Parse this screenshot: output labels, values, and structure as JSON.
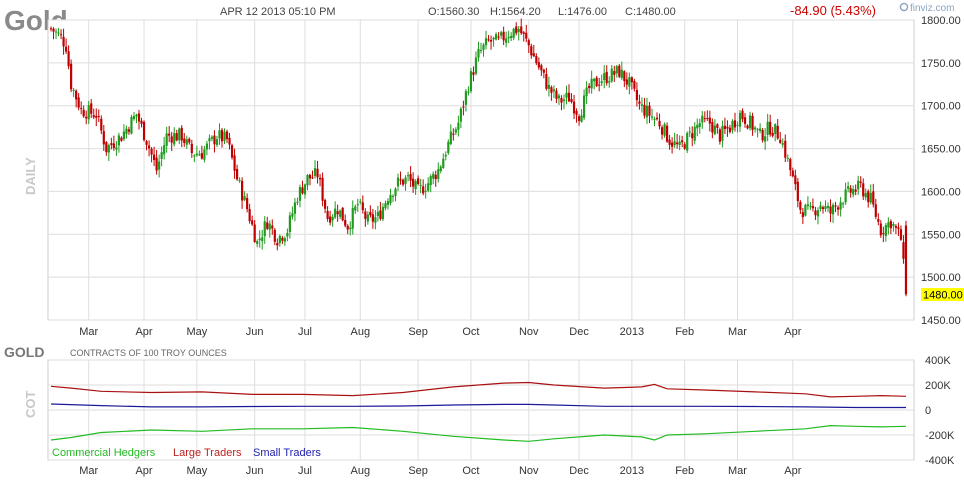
{
  "header": {
    "symbol": "Gold",
    "datetime": "APR 12 2013 05:10 PM",
    "open": "O:1560.30",
    "high": "H:1564.20",
    "low": "L:1476.00",
    "close": "C:1480.00",
    "change": "-84.90 (5.43%)",
    "brand": "finviz.com"
  },
  "colors": {
    "up": "#1f9b1f",
    "down": "#c00000",
    "grid": "#dedede",
    "commercial": "#22bb22",
    "large": "#aa1111",
    "small": "#1a1a99",
    "last_price_bg": "#ffff00"
  },
  "chart_data": [
    {
      "type": "candlestick",
      "ylabel": "DAILY",
      "ylim": [
        1450,
        1800
      ],
      "y_ticks": [
        1450,
        1500,
        1550,
        1600,
        1650,
        1700,
        1750,
        1800
      ],
      "y_tick_labels": [
        "1450.00",
        "1500.00",
        "1550.00",
        "1600.00",
        "1650.00",
        "1700.00",
        "1750.00",
        "1800.00"
      ],
      "x_labels": [
        "Mar",
        "Apr",
        "May",
        "Jun",
        "Jul",
        "Aug",
        "Sep",
        "Oct",
        "Nov",
        "Dec",
        "2013",
        "Feb",
        "Mar",
        "Apr"
      ],
      "last_price_label": "1480.00",
      "last_price": 1480.0,
      "grid": true,
      "close_path": [
        [
          0,
          1790
        ],
        [
          4,
          1780
        ],
        [
          6,
          1770
        ],
        [
          8,
          1725
        ],
        [
          12,
          1695
        ],
        [
          18,
          1690
        ],
        [
          22,
          1650
        ],
        [
          28,
          1665
        ],
        [
          34,
          1690
        ],
        [
          38,
          1660
        ],
        [
          42,
          1625
        ],
        [
          46,
          1665
        ],
        [
          52,
          1665
        ],
        [
          56,
          1645
        ],
        [
          60,
          1645
        ],
        [
          66,
          1665
        ],
        [
          70,
          1660
        ],
        [
          74,
          1615
        ],
        [
          78,
          1580
        ],
        [
          82,
          1540
        ],
        [
          86,
          1565
        ],
        [
          90,
          1545
        ],
        [
          94,
          1555
        ],
        [
          98,
          1595
        ],
        [
          102,
          1615
        ],
        [
          106,
          1620
        ],
        [
          110,
          1570
        ],
        [
          114,
          1580
        ],
        [
          118,
          1560
        ],
        [
          122,
          1585
        ],
        [
          126,
          1565
        ],
        [
          130,
          1570
        ],
        [
          134,
          1595
        ],
        [
          138,
          1610
        ],
        [
          142,
          1615
        ],
        [
          146,
          1600
        ],
        [
          150,
          1610
        ],
        [
          154,
          1625
        ],
        [
          158,
          1655
        ],
        [
          162,
          1680
        ],
        [
          166,
          1725
        ],
        [
          170,
          1760
        ],
        [
          174,
          1775
        ],
        [
          178,
          1775
        ],
        [
          182,
          1785
        ],
        [
          186,
          1790
        ],
        [
          190,
          1770
        ],
        [
          194,
          1745
        ],
        [
          198,
          1720
        ],
        [
          202,
          1705
        ],
        [
          206,
          1710
        ],
        [
          210,
          1690
        ],
        [
          214,
          1720
        ],
        [
          218,
          1730
        ],
        [
          222,
          1735
        ],
        [
          226,
          1740
        ],
        [
          230,
          1725
        ],
        [
          234,
          1700
        ],
        [
          238,
          1690
        ],
        [
          242,
          1680
        ],
        [
          246,
          1660
        ],
        [
          250,
          1650
        ],
        [
          254,
          1665
        ],
        [
          258,
          1680
        ],
        [
          262,
          1680
        ],
        [
          266,
          1665
        ],
        [
          270,
          1675
        ],
        [
          274,
          1690
        ],
        [
          278,
          1680
        ],
        [
          282,
          1665
        ],
        [
          286,
          1675
        ],
        [
          290,
          1665
        ],
        [
          294,
          1625
        ],
        [
          298,
          1580
        ],
        [
          302,
          1575
        ],
        [
          306,
          1585
        ],
        [
          310,
          1575
        ],
        [
          314,
          1590
        ],
        [
          318,
          1600
        ],
        [
          322,
          1605
        ],
        [
          326,
          1590
        ],
        [
          330,
          1555
        ],
        [
          334,
          1565
        ],
        [
          338,
          1545
        ],
        [
          340,
          1480
        ]
      ]
    },
    {
      "type": "line",
      "title": "GOLD",
      "subtitle": "CONTRACTS OF 100 TROY OUNCES",
      "ylabel": "COT",
      "ylim": [
        -400000,
        400000
      ],
      "y_tick_labels": [
        "400K",
        "200K",
        "0",
        "-200K",
        "-400K"
      ],
      "y_ticks": [
        400000,
        200000,
        0,
        -200000,
        -400000
      ],
      "x_labels": [
        "Mar",
        "Apr",
        "May",
        "Jun",
        "Jul",
        "Aug",
        "Sep",
        "Oct",
        "Nov",
        "Dec",
        "2013",
        "Feb",
        "Mar",
        "Apr"
      ],
      "series": [
        {
          "name": "Commercial Hedgers",
          "values": [
            [
              0,
              -240000
            ],
            [
              8,
              -220000
            ],
            [
              20,
              -180000
            ],
            [
              40,
              -160000
            ],
            [
              60,
              -170000
            ],
            [
              80,
              -150000
            ],
            [
              100,
              -150000
            ],
            [
              120,
              -140000
            ],
            [
              140,
              -170000
            ],
            [
              160,
              -210000
            ],
            [
              180,
              -240000
            ],
            [
              190,
              -250000
            ],
            [
              200,
              -230000
            ],
            [
              220,
              -200000
            ],
            [
              235,
              -215000
            ],
            [
              240,
              -240000
            ],
            [
              245,
              -200000
            ],
            [
              260,
              -190000
            ],
            [
              280,
              -170000
            ],
            [
              300,
              -150000
            ],
            [
              310,
              -125000
            ],
            [
              320,
              -130000
            ],
            [
              330,
              -135000
            ],
            [
              340,
              -130000
            ]
          ]
        },
        {
          "name": "Large Traders",
          "values": [
            [
              0,
              190000
            ],
            [
              8,
              175000
            ],
            [
              20,
              150000
            ],
            [
              40,
              140000
            ],
            [
              60,
              145000
            ],
            [
              80,
              125000
            ],
            [
              100,
              125000
            ],
            [
              120,
              115000
            ],
            [
              140,
              140000
            ],
            [
              160,
              185000
            ],
            [
              180,
              215000
            ],
            [
              190,
              220000
            ],
            [
              200,
              200000
            ],
            [
              220,
              175000
            ],
            [
              235,
              185000
            ],
            [
              240,
              205000
            ],
            [
              245,
              170000
            ],
            [
              260,
              160000
            ],
            [
              280,
              145000
            ],
            [
              300,
              130000
            ],
            [
              310,
              105000
            ],
            [
              320,
              110000
            ],
            [
              330,
              115000
            ],
            [
              340,
              110000
            ]
          ]
        },
        {
          "name": "Small Traders",
          "values": [
            [
              0,
              48000
            ],
            [
              20,
              35000
            ],
            [
              40,
              25000
            ],
            [
              60,
              25000
            ],
            [
              80,
              28000
            ],
            [
              100,
              30000
            ],
            [
              120,
              30000
            ],
            [
              140,
              32000
            ],
            [
              160,
              40000
            ],
            [
              180,
              45000
            ],
            [
              190,
              45000
            ],
            [
              200,
              40000
            ],
            [
              220,
              30000
            ],
            [
              240,
              30000
            ],
            [
              260,
              30000
            ],
            [
              280,
              28000
            ],
            [
              300,
              25000
            ],
            [
              320,
              20000
            ],
            [
              340,
              20000
            ]
          ]
        }
      ]
    }
  ]
}
